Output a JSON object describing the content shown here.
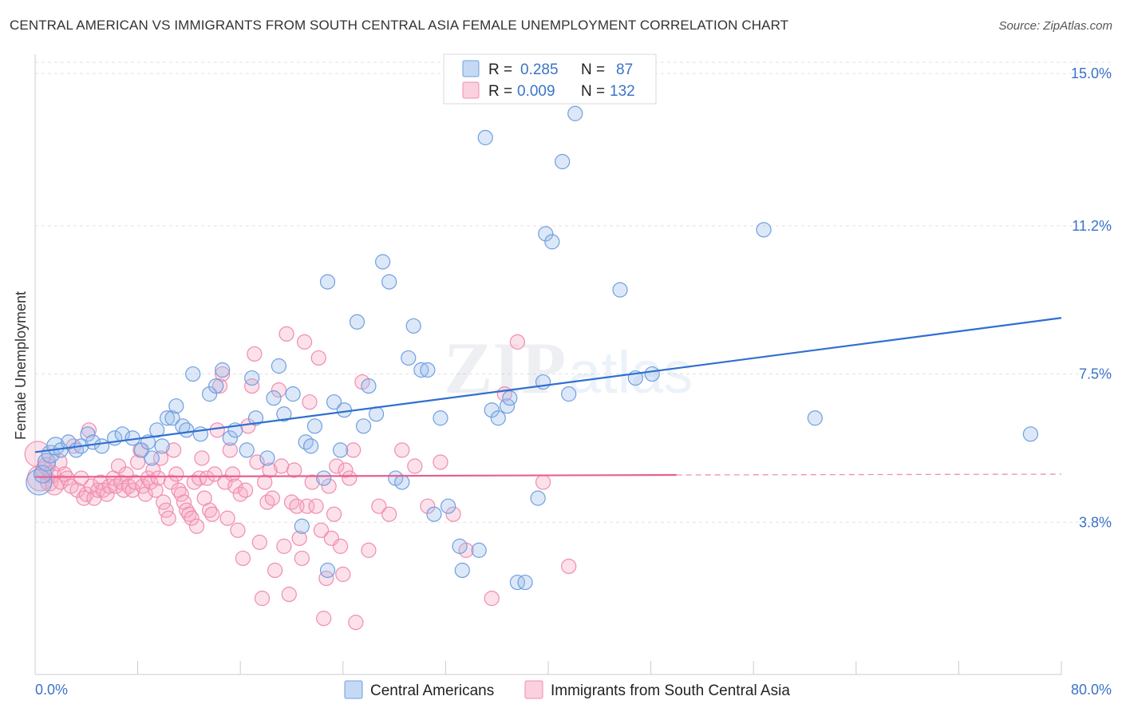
{
  "title": "CENTRAL AMERICAN VS IMMIGRANTS FROM SOUTH CENTRAL ASIA FEMALE UNEMPLOYMENT CORRELATION CHART",
  "source": "Source: ZipAtlas.com",
  "colors": {
    "blue": "#6f9fe0",
    "blue_line": "#2f6fd0",
    "pink": "#f08cb0",
    "pink_line": "#e8608e",
    "tick": "#3b73c9"
  },
  "chart_data": {
    "type": "scatter",
    "title": "CENTRAL AMERICAN VS IMMIGRANTS FROM SOUTH CENTRAL ASIA FEMALE UNEMPLOYMENT CORRELATION CHART",
    "xlabel": "",
    "ylabel": "Female Unemployment",
    "xlim": [
      0,
      80
    ],
    "ylim": [
      0,
      15.4
    ],
    "x_tick_labels": [
      "0.0%",
      "80.0%"
    ],
    "y_ticks": [
      3.8,
      7.5,
      11.2,
      15.0
    ],
    "y_tick_labels": [
      "3.8%",
      "7.5%",
      "11.2%",
      "15.0%"
    ],
    "grid": true,
    "legend": {
      "position": "top-center",
      "rows": [
        {
          "r_label": "R =",
          "r_value": "0.285",
          "n_label": "N =",
          "n_value": "87"
        },
        {
          "r_label": "R =",
          "r_value": "0.009",
          "n_label": "N =",
          "n_value": "132"
        }
      ]
    },
    "series": [
      {
        "name": "Central Americans",
        "color": "#6f9fe0",
        "trend": {
          "x": [
            0,
            80
          ],
          "y": [
            5.55,
            8.9
          ]
        },
        "points": [
          [
            0.3,
            4.8
          ],
          [
            0.6,
            5.0
          ],
          [
            0.9,
            5.3
          ],
          [
            1.2,
            5.5
          ],
          [
            1.6,
            5.7
          ],
          [
            2.0,
            5.6
          ],
          [
            2.6,
            5.8
          ],
          [
            3.2,
            5.6
          ],
          [
            3.6,
            5.7
          ],
          [
            4.1,
            6.0
          ],
          [
            4.5,
            5.8
          ],
          [
            5.2,
            5.7
          ],
          [
            6.2,
            5.9
          ],
          [
            6.8,
            6.0
          ],
          [
            7.6,
            5.9
          ],
          [
            8.3,
            5.6
          ],
          [
            8.8,
            5.8
          ],
          [
            9.1,
            5.4
          ],
          [
            9.5,
            6.1
          ],
          [
            9.9,
            5.7
          ],
          [
            10.3,
            6.4
          ],
          [
            10.7,
            6.4
          ],
          [
            11.0,
            6.7
          ],
          [
            11.5,
            6.2
          ],
          [
            11.8,
            6.1
          ],
          [
            12.3,
            7.5
          ],
          [
            12.9,
            6.0
          ],
          [
            13.6,
            7.0
          ],
          [
            14.1,
            7.2
          ],
          [
            14.6,
            7.6
          ],
          [
            15.2,
            5.9
          ],
          [
            15.6,
            6.1
          ],
          [
            16.5,
            5.6
          ],
          [
            16.9,
            7.4
          ],
          [
            17.2,
            6.4
          ],
          [
            18.1,
            5.4
          ],
          [
            18.6,
            6.9
          ],
          [
            19.0,
            7.7
          ],
          [
            19.4,
            6.5
          ],
          [
            20.1,
            7.0
          ],
          [
            20.8,
            3.7
          ],
          [
            21.1,
            5.8
          ],
          [
            21.5,
            5.7
          ],
          [
            21.8,
            6.2
          ],
          [
            22.5,
            4.9
          ],
          [
            22.8,
            2.6
          ],
          [
            22.8,
            9.8
          ],
          [
            23.3,
            6.8
          ],
          [
            23.8,
            5.6
          ],
          [
            24.1,
            6.6
          ],
          [
            25.1,
            8.8
          ],
          [
            25.6,
            6.2
          ],
          [
            26.0,
            7.2
          ],
          [
            26.6,
            6.5
          ],
          [
            27.1,
            10.3
          ],
          [
            27.6,
            9.8
          ],
          [
            28.1,
            4.9
          ],
          [
            28.6,
            4.8
          ],
          [
            29.1,
            7.9
          ],
          [
            29.5,
            8.7
          ],
          [
            30.1,
            7.6
          ],
          [
            30.6,
            7.6
          ],
          [
            31.1,
            4.0
          ],
          [
            31.6,
            6.4
          ],
          [
            32.2,
            4.2
          ],
          [
            33.1,
            3.2
          ],
          [
            33.3,
            2.6
          ],
          [
            34.6,
            3.1
          ],
          [
            35.1,
            13.4
          ],
          [
            35.6,
            6.6
          ],
          [
            36.1,
            6.4
          ],
          [
            36.8,
            6.7
          ],
          [
            37.0,
            6.9
          ],
          [
            37.6,
            2.3
          ],
          [
            38.2,
            2.3
          ],
          [
            39.2,
            4.4
          ],
          [
            39.6,
            7.3
          ],
          [
            39.8,
            11.0
          ],
          [
            40.3,
            10.8
          ],
          [
            41.1,
            12.8
          ],
          [
            41.6,
            7.0
          ],
          [
            42.1,
            14.0
          ],
          [
            45.6,
            9.6
          ],
          [
            46.8,
            7.4
          ],
          [
            48.1,
            7.5
          ],
          [
            56.8,
            11.1
          ],
          [
            60.8,
            6.4
          ],
          [
            77.6,
            6.0
          ]
        ]
      },
      {
        "name": "Immigrants from South Central Asia",
        "color": "#f08cb0",
        "trend": {
          "x": [
            0,
            50
          ],
          "y": [
            4.93,
            4.98
          ]
        },
        "trend_dashed": {
          "x": [
            50,
            80
          ],
          "y": [
            4.98,
            5.0
          ]
        },
        "points": [
          [
            0.2,
            5.5
          ],
          [
            0.4,
            4.9
          ],
          [
            0.7,
            5.1
          ],
          [
            0.9,
            5.2
          ],
          [
            1.1,
            4.8
          ],
          [
            1.3,
            5.0
          ],
          [
            1.5,
            4.7
          ],
          [
            1.8,
            5.3
          ],
          [
            2.0,
            4.8
          ],
          [
            2.3,
            5.0
          ],
          [
            2.5,
            4.9
          ],
          [
            2.8,
            4.7
          ],
          [
            3.0,
            5.7
          ],
          [
            3.3,
            4.6
          ],
          [
            3.6,
            4.9
          ],
          [
            3.8,
            4.4
          ],
          [
            4.0,
            4.5
          ],
          [
            4.2,
            6.1
          ],
          [
            4.4,
            4.7
          ],
          [
            4.6,
            4.4
          ],
          [
            4.9,
            4.6
          ],
          [
            5.1,
            4.8
          ],
          [
            5.3,
            4.6
          ],
          [
            5.6,
            4.5
          ],
          [
            5.8,
            4.7
          ],
          [
            6.1,
            4.9
          ],
          [
            6.3,
            4.7
          ],
          [
            6.5,
            5.2
          ],
          [
            6.7,
            4.8
          ],
          [
            6.9,
            4.6
          ],
          [
            7.1,
            5.0
          ],
          [
            7.3,
            4.7
          ],
          [
            7.6,
            4.6
          ],
          [
            7.8,
            4.8
          ],
          [
            8.0,
            5.3
          ],
          [
            8.2,
            5.6
          ],
          [
            8.4,
            4.7
          ],
          [
            8.6,
            4.5
          ],
          [
            8.8,
            4.9
          ],
          [
            9.0,
            4.8
          ],
          [
            9.2,
            5.1
          ],
          [
            9.4,
            4.6
          ],
          [
            9.6,
            4.9
          ],
          [
            9.8,
            5.4
          ],
          [
            10.0,
            4.3
          ],
          [
            10.2,
            4.1
          ],
          [
            10.4,
            3.9
          ],
          [
            10.6,
            4.8
          ],
          [
            10.8,
            5.6
          ],
          [
            11.0,
            5.0
          ],
          [
            11.2,
            4.6
          ],
          [
            11.4,
            4.5
          ],
          [
            11.6,
            4.3
          ],
          [
            11.8,
            4.1
          ],
          [
            12.0,
            4.0
          ],
          [
            12.2,
            3.9
          ],
          [
            12.4,
            4.8
          ],
          [
            12.6,
            3.7
          ],
          [
            12.8,
            4.9
          ],
          [
            13.0,
            5.4
          ],
          [
            13.2,
            4.4
          ],
          [
            13.4,
            4.9
          ],
          [
            13.6,
            4.1
          ],
          [
            13.8,
            4.0
          ],
          [
            14.0,
            5.0
          ],
          [
            14.2,
            6.1
          ],
          [
            14.4,
            7.2
          ],
          [
            14.6,
            7.5
          ],
          [
            14.8,
            4.8
          ],
          [
            15.0,
            3.9
          ],
          [
            15.2,
            5.6
          ],
          [
            15.4,
            5.0
          ],
          [
            15.6,
            4.7
          ],
          [
            15.8,
            3.6
          ],
          [
            16.0,
            4.5
          ],
          [
            16.2,
            2.9
          ],
          [
            16.4,
            4.6
          ],
          [
            16.6,
            6.2
          ],
          [
            16.9,
            7.2
          ],
          [
            17.1,
            8.0
          ],
          [
            17.3,
            5.3
          ],
          [
            17.5,
            3.3
          ],
          [
            17.7,
            1.9
          ],
          [
            17.9,
            4.8
          ],
          [
            18.1,
            4.3
          ],
          [
            18.3,
            5.1
          ],
          [
            18.5,
            4.4
          ],
          [
            18.7,
            2.6
          ],
          [
            19.0,
            7.1
          ],
          [
            19.2,
            5.2
          ],
          [
            19.4,
            3.2
          ],
          [
            19.6,
            8.5
          ],
          [
            19.8,
            2.0
          ],
          [
            20.0,
            4.3
          ],
          [
            20.2,
            5.1
          ],
          [
            20.4,
            4.2
          ],
          [
            20.6,
            3.4
          ],
          [
            20.8,
            2.9
          ],
          [
            21.0,
            8.3
          ],
          [
            21.2,
            4.2
          ],
          [
            21.4,
            6.8
          ],
          [
            21.6,
            4.8
          ],
          [
            21.9,
            4.2
          ],
          [
            22.1,
            7.9
          ],
          [
            22.3,
            3.6
          ],
          [
            22.5,
            1.4
          ],
          [
            22.7,
            2.4
          ],
          [
            22.9,
            4.7
          ],
          [
            23.1,
            3.4
          ],
          [
            23.3,
            4.0
          ],
          [
            23.5,
            5.2
          ],
          [
            23.8,
            3.2
          ],
          [
            24.0,
            2.5
          ],
          [
            24.2,
            5.1
          ],
          [
            24.5,
            4.9
          ],
          [
            24.8,
            5.6
          ],
          [
            25.0,
            1.3
          ],
          [
            25.5,
            7.3
          ],
          [
            26.0,
            3.1
          ],
          [
            26.8,
            4.2
          ],
          [
            27.6,
            4.0
          ],
          [
            28.6,
            5.6
          ],
          [
            29.6,
            5.2
          ],
          [
            30.6,
            4.2
          ],
          [
            31.6,
            5.3
          ],
          [
            32.6,
            4.0
          ],
          [
            33.6,
            3.1
          ],
          [
            35.6,
            1.9
          ],
          [
            36.6,
            7.0
          ],
          [
            37.6,
            8.3
          ],
          [
            39.6,
            4.8
          ],
          [
            41.6,
            2.7
          ]
        ]
      }
    ]
  },
  "bottom_legend": [
    "Central Americans",
    "Immigrants from South Central Asia"
  ],
  "watermark": "ZIPatlas"
}
